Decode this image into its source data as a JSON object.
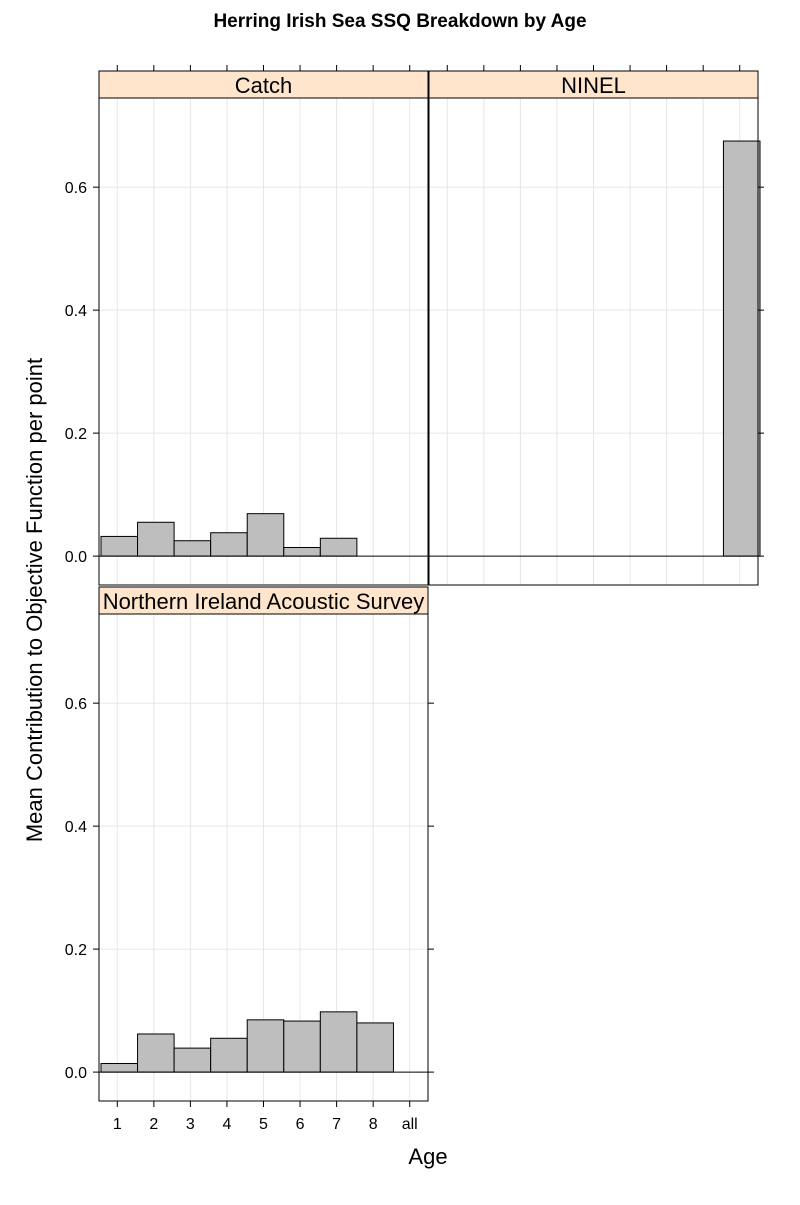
{
  "chart_data": {
    "type": "bar",
    "layout": "trellis",
    "title": "Herring Irish Sea SSQ Breakdown by Age",
    "xlabel": "Age",
    "ylabel": "Mean Contribution to Objective Function per point",
    "categories": [
      "1",
      "2",
      "3",
      "4",
      "5",
      "6",
      "7",
      "8",
      "all"
    ],
    "ylim": [
      -0.047,
      0.745
    ],
    "yticks": [
      0.0,
      0.2,
      0.4,
      0.6
    ],
    "ytick_labels": [
      "0.0",
      "0.2",
      "0.4",
      "0.6"
    ],
    "grid": true,
    "bar_fill": "#bebebe",
    "strip_fill": "#ffe5cc",
    "grid_color": "#e6e6e6",
    "panels": [
      {
        "name": "Catch",
        "values": [
          0.032,
          0.055,
          0.025,
          0.038,
          0.069,
          0.014,
          0.029,
          null,
          null
        ]
      },
      {
        "name": "NINEL",
        "values": [
          null,
          null,
          null,
          null,
          null,
          null,
          null,
          null,
          0.675
        ]
      },
      {
        "name": "Northern Ireland Acoustic Survey",
        "values": [
          0.014,
          0.062,
          0.039,
          0.055,
          0.085,
          0.083,
          0.098,
          0.08,
          null
        ]
      }
    ]
  }
}
